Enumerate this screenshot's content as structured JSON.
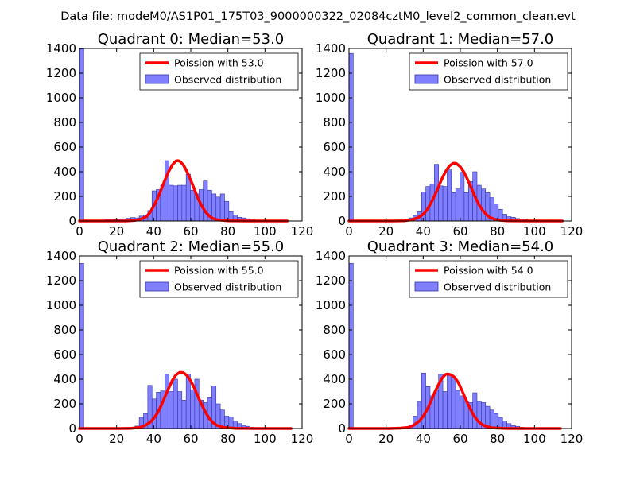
{
  "suptitle": "Data file: modeM0/AS1P01_175T03_9000000322_02084cztM0_level2_common_clean.evt",
  "colors": {
    "hist_fill": "#8080ff",
    "hist_edge": "#3333aa",
    "poisson_line": "#ff0000",
    "axes": "#000000"
  },
  "chart_data": [
    {
      "type": "bar",
      "title": "Quadrant 0: Median=53.0",
      "median": 53.0,
      "xlim": [
        0,
        120
      ],
      "ylim": [
        0,
        1400
      ],
      "xticks": [
        0,
        20,
        40,
        60,
        80,
        100,
        120
      ],
      "yticks": [
        0,
        200,
        400,
        600,
        800,
        1000,
        1200,
        1400
      ],
      "legend": [
        "Poission with 53.0",
        "Observed distribution"
      ],
      "legend_position": "top-right",
      "bin_edges": [
        0,
        2.3,
        4.6,
        6.9,
        9.2,
        11.5,
        13.8,
        16.1,
        18.4,
        20.7,
        23,
        25.3,
        27.6,
        29.9,
        32.2,
        34.5,
        36.8,
        39.1,
        41.4,
        43.7,
        46,
        48.3,
        50.6,
        52.9,
        55.2,
        57.5,
        59.8,
        62.1,
        64.4,
        66.7,
        69,
        71.3,
        73.6,
        75.9,
        78.2,
        80.5,
        82.8,
        85.1,
        87.4,
        89.7,
        92,
        94.3,
        96.6,
        98.9,
        101.2,
        103.5,
        105.8,
        108.1,
        110.4,
        112.7,
        115
      ],
      "counts": [
        1395,
        0,
        0,
        0,
        0,
        5,
        10,
        10,
        12,
        15,
        18,
        22,
        28,
        25,
        40,
        50,
        85,
        245,
        255,
        290,
        490,
        290,
        285,
        290,
        290,
        380,
        250,
        220,
        255,
        325,
        250,
        220,
        195,
        220,
        160,
        75,
        48,
        30,
        25,
        18,
        15,
        8,
        5,
        0,
        0,
        0,
        0,
        0,
        0,
        0
      ],
      "poisson_x": [
        0,
        20,
        25,
        30,
        33,
        36,
        38,
        40,
        42,
        44,
        46,
        48,
        50,
        52,
        53,
        54,
        56,
        58,
        60,
        62,
        64,
        66,
        68,
        70,
        72,
        75,
        80,
        90,
        100,
        112
      ],
      "poisson_y": [
        0,
        0,
        0,
        5,
        15,
        35,
        70,
        120,
        180,
        255,
        330,
        400,
        455,
        488,
        490,
        486,
        455,
        400,
        330,
        255,
        180,
        120,
        72,
        40,
        20,
        8,
        2,
        0,
        0,
        0
      ]
    },
    {
      "type": "bar",
      "title": "Quadrant 1: Median=57.0",
      "median": 57.0,
      "xlim": [
        0,
        120
      ],
      "ylim": [
        0,
        1400
      ],
      "xticks": [
        0,
        20,
        40,
        60,
        80,
        100,
        120
      ],
      "yticks": [
        0,
        200,
        400,
        600,
        800,
        1000,
        1200,
        1400
      ],
      "legend": [
        "Poission with 57.0",
        "Observed distribution"
      ],
      "legend_position": "top-right",
      "bin_edges": [
        0,
        2.3,
        4.6,
        6.9,
        9.2,
        11.5,
        13.8,
        16.1,
        18.4,
        20.7,
        23,
        25.3,
        27.6,
        29.9,
        32.2,
        34.5,
        36.8,
        39.1,
        41.4,
        43.7,
        46,
        48.3,
        50.6,
        52.9,
        55.2,
        57.5,
        59.8,
        62.1,
        64.4,
        66.7,
        69,
        71.3,
        73.6,
        75.9,
        78.2,
        80.5,
        82.8,
        85.1,
        87.4,
        89.7,
        92,
        94.3,
        96.6,
        98.9,
        101.2,
        103.5,
        105.8,
        108.1,
        110.4,
        112.7,
        115
      ],
      "counts": [
        1360,
        0,
        0,
        0,
        0,
        0,
        0,
        0,
        0,
        0,
        0,
        0,
        5,
        15,
        25,
        45,
        75,
        235,
        280,
        300,
        460,
        285,
        280,
        415,
        230,
        260,
        395,
        230,
        320,
        400,
        290,
        260,
        230,
        190,
        140,
        95,
        55,
        35,
        30,
        20,
        15,
        10,
        5,
        0,
        0,
        0,
        0,
        0,
        0,
        0
      ],
      "poisson_x": [
        0,
        24,
        30,
        34,
        37,
        40,
        42,
        44,
        46,
        48,
        50,
        52,
        54,
        56,
        57,
        58,
        60,
        62,
        64,
        66,
        68,
        70,
        72,
        74,
        76,
        80,
        85,
        95,
        105,
        115
      ],
      "poisson_y": [
        0,
        0,
        2,
        10,
        25,
        55,
        90,
        140,
        200,
        270,
        340,
        400,
        445,
        468,
        470,
        466,
        440,
        395,
        335,
        265,
        195,
        135,
        88,
        52,
        28,
        8,
        2,
        0,
        0,
        0
      ]
    },
    {
      "type": "bar",
      "title": "Quadrant 2: Median=55.0",
      "median": 55.0,
      "xlim": [
        0,
        120
      ],
      "ylim": [
        0,
        1400
      ],
      "xticks": [
        0,
        20,
        40,
        60,
        80,
        100,
        120
      ],
      "yticks": [
        0,
        200,
        400,
        600,
        800,
        1000,
        1200,
        1400
      ],
      "legend": [
        "Poission with 55.0",
        "Observed distribution"
      ],
      "legend_position": "top-right",
      "bin_edges": [
        0,
        2.3,
        4.6,
        6.9,
        9.2,
        11.5,
        13.8,
        16.1,
        18.4,
        20.7,
        23,
        25.3,
        27.6,
        29.9,
        32.2,
        34.5,
        36.8,
        39.1,
        41.4,
        43.7,
        46,
        48.3,
        50.6,
        52.9,
        55.2,
        57.5,
        59.8,
        62.1,
        64.4,
        66.7,
        69,
        71.3,
        73.6,
        75.9,
        78.2,
        80.5,
        82.8,
        85.1,
        87.4,
        89.7,
        92,
        94.3,
        96.6,
        98.9,
        101.2,
        103.5,
        105.8,
        108.1,
        110.4,
        112.7,
        115
      ],
      "counts": [
        1340,
        0,
        0,
        0,
        0,
        0,
        0,
        0,
        0,
        0,
        0,
        0,
        5,
        20,
        90,
        120,
        350,
        240,
        295,
        305,
        440,
        300,
        400,
        300,
        230,
        440,
        315,
        400,
        230,
        210,
        250,
        345,
        200,
        150,
        100,
        95,
        60,
        40,
        25,
        18,
        10,
        8,
        5,
        0,
        0,
        0,
        0,
        0,
        0,
        0
      ],
      "poisson_x": [
        0,
        22,
        28,
        32,
        35,
        38,
        40,
        42,
        44,
        46,
        48,
        50,
        52,
        54,
        55,
        56,
        58,
        60,
        62,
        64,
        66,
        68,
        70,
        72,
        74,
        78,
        84,
        94,
        104,
        114
      ],
      "poisson_y": [
        0,
        0,
        2,
        8,
        22,
        50,
        82,
        125,
        185,
        255,
        325,
        390,
        435,
        455,
        455,
        452,
        430,
        385,
        325,
        255,
        190,
        130,
        82,
        48,
        26,
        8,
        2,
        0,
        0,
        0
      ]
    },
    {
      "type": "bar",
      "title": "Quadrant 3: Median=54.0",
      "median": 54.0,
      "xlim": [
        0,
        120
      ],
      "ylim": [
        0,
        1400
      ],
      "xticks": [
        0,
        20,
        40,
        60,
        80,
        100,
        120
      ],
      "yticks": [
        0,
        200,
        400,
        600,
        800,
        1000,
        1200,
        1400
      ],
      "legend": [
        "Poission with 54.0",
        "Observed distribution"
      ],
      "legend_position": "top-right",
      "bin_edges": [
        0,
        2.3,
        4.6,
        6.9,
        9.2,
        11.5,
        13.8,
        16.1,
        18.4,
        20.7,
        23,
        25.3,
        27.6,
        29.9,
        32.2,
        34.5,
        36.8,
        39.1,
        41.4,
        43.7,
        46,
        48.3,
        50.6,
        52.9,
        55.2,
        57.5,
        59.8,
        62.1,
        64.4,
        66.7,
        69,
        71.3,
        73.6,
        75.9,
        78.2,
        80.5,
        82.8,
        85.1,
        87.4,
        89.7,
        92,
        94.3,
        96.6,
        98.9,
        101.2,
        103.5,
        105.8,
        108.1,
        110.4,
        112.7,
        115
      ],
      "counts": [
        1340,
        0,
        0,
        0,
        0,
        0,
        0,
        0,
        0,
        0,
        0,
        0,
        0,
        5,
        30,
        100,
        220,
        450,
        340,
        265,
        310,
        440,
        300,
        440,
        420,
        310,
        265,
        220,
        210,
        290,
        220,
        210,
        180,
        150,
        120,
        90,
        60,
        40,
        25,
        18,
        10,
        8,
        5,
        0,
        0,
        0,
        0,
        0,
        0,
        0
      ],
      "poisson_x": [
        0,
        22,
        28,
        32,
        35,
        38,
        40,
        42,
        44,
        46,
        48,
        50,
        52,
        53,
        54,
        55,
        57,
        59,
        61,
        63,
        65,
        67,
        69,
        71,
        73,
        77,
        83,
        93,
        103,
        114
      ],
      "poisson_y": [
        0,
        0,
        3,
        10,
        28,
        62,
        100,
        150,
        215,
        285,
        350,
        405,
        438,
        442,
        440,
        436,
        415,
        370,
        305,
        235,
        170,
        112,
        70,
        40,
        22,
        6,
        1,
        0,
        0,
        0
      ]
    }
  ]
}
